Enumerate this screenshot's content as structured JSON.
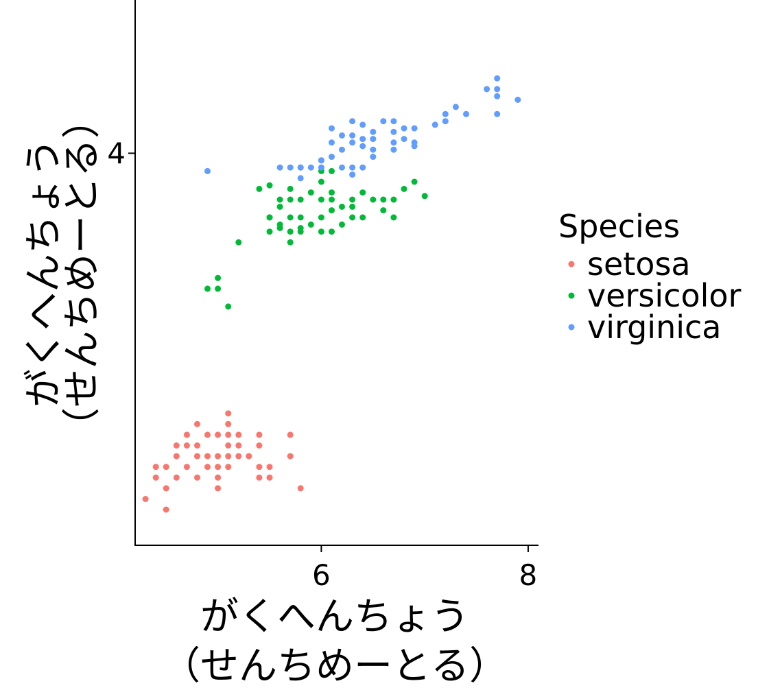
{
  "chart_data": {
    "type": "scatter",
    "xlabel_lines": [
      "がくへんちょう",
      "（せんちめーとる）"
    ],
    "ylabel_lines": [
      "がくへんちょう",
      "（せんちめーとる）"
    ],
    "xlim": [
      4.2,
      8.1
    ],
    "ylim": [
      2.9,
      4.43
    ],
    "x_ticks": [
      {
        "value": 6,
        "label": "6"
      },
      {
        "value": 8,
        "label": "8"
      }
    ],
    "y_ticks": [
      {
        "value": 4,
        "label": "4"
      }
    ],
    "grid": false,
    "legend_position": "right",
    "legend_title": "Species",
    "series": [
      {
        "name": "setosa",
        "color": "#F8766D",
        "points": [
          [
            4.3,
            3.03
          ],
          [
            4.4,
            3.09
          ],
          [
            4.4,
            3.12
          ],
          [
            4.5,
            3.06
          ],
          [
            4.5,
            3.12
          ],
          [
            4.6,
            3.09
          ],
          [
            4.6,
            3.15
          ],
          [
            4.6,
            3.18
          ],
          [
            4.7,
            3.12
          ],
          [
            4.7,
            3.18
          ],
          [
            4.7,
            3.21
          ],
          [
            4.8,
            3.09
          ],
          [
            4.8,
            3.15
          ],
          [
            4.8,
            3.18
          ],
          [
            4.8,
            3.24
          ],
          [
            4.9,
            3.12
          ],
          [
            4.9,
            3.15
          ],
          [
            4.9,
            3.21
          ],
          [
            5.0,
            3.09
          ],
          [
            5.0,
            3.12
          ],
          [
            5.0,
            3.15
          ],
          [
            5.0,
            3.21
          ],
          [
            5.1,
            3.12
          ],
          [
            5.1,
            3.15
          ],
          [
            5.1,
            3.18
          ],
          [
            5.1,
            3.21
          ],
          [
            5.1,
            3.24
          ],
          [
            5.1,
            3.27
          ],
          [
            5.2,
            3.15
          ],
          [
            5.2,
            3.18
          ],
          [
            5.2,
            3.21
          ],
          [
            5.3,
            3.15
          ],
          [
            5.4,
            3.12
          ],
          [
            5.4,
            3.18
          ],
          [
            5.4,
            3.21
          ],
          [
            5.5,
            3.09
          ],
          [
            5.5,
            3.12
          ],
          [
            5.7,
            3.15
          ],
          [
            5.7,
            3.21
          ],
          [
            5.8,
            3.06
          ],
          [
            4.5,
            3.0
          ],
          [
            5.0,
            3.06
          ],
          [
            5.4,
            3.09
          ]
        ]
      },
      {
        "name": "versicolor",
        "color": "#00BA38",
        "points": [
          [
            4.9,
            3.62
          ],
          [
            5.0,
            3.62
          ],
          [
            5.0,
            3.65
          ],
          [
            5.1,
            3.57
          ],
          [
            5.2,
            3.75
          ],
          [
            5.4,
            3.9
          ],
          [
            5.5,
            3.82
          ],
          [
            5.5,
            3.82
          ],
          [
            5.5,
            3.91
          ],
          [
            5.6,
            3.8
          ],
          [
            5.6,
            3.85
          ],
          [
            5.6,
            3.87
          ],
          [
            5.7,
            3.75
          ],
          [
            5.7,
            3.82
          ],
          [
            5.7,
            3.87
          ],
          [
            5.7,
            3.9
          ],
          [
            5.8,
            3.78
          ],
          [
            5.8,
            3.82
          ],
          [
            5.8,
            3.87
          ],
          [
            5.9,
            3.8
          ],
          [
            5.9,
            3.89
          ],
          [
            6.0,
            3.82
          ],
          [
            6.0,
            3.87
          ],
          [
            6.0,
            3.92
          ],
          [
            6.0,
            3.95
          ],
          [
            6.1,
            3.78
          ],
          [
            6.1,
            3.84
          ],
          [
            6.1,
            3.87
          ],
          [
            6.1,
            3.89
          ],
          [
            6.2,
            3.8
          ],
          [
            6.2,
            3.85
          ],
          [
            6.3,
            3.82
          ],
          [
            6.3,
            3.85
          ],
          [
            6.3,
            3.87
          ],
          [
            6.4,
            3.82
          ],
          [
            6.4,
            3.89
          ],
          [
            6.5,
            3.87
          ],
          [
            6.6,
            3.84
          ],
          [
            6.6,
            3.87
          ],
          [
            6.7,
            3.82
          ],
          [
            6.7,
            3.87
          ],
          [
            6.8,
            3.9
          ],
          [
            6.9,
            3.92
          ],
          [
            7.0,
            3.88
          ],
          [
            5.5,
            3.78
          ],
          [
            5.6,
            3.79
          ],
          [
            5.7,
            3.78
          ],
          [
            5.8,
            3.79
          ],
          [
            6.0,
            3.78
          ],
          [
            6.1,
            3.95
          ]
        ]
      },
      {
        "name": "virginica",
        "color": "#619CFF",
        "points": [
          [
            4.9,
            3.95
          ],
          [
            5.6,
            3.96
          ],
          [
            5.7,
            3.96
          ],
          [
            5.8,
            3.96
          ],
          [
            5.8,
            3.96
          ],
          [
            5.9,
            3.96
          ],
          [
            6.0,
            3.98
          ],
          [
            6.1,
            3.99
          ],
          [
            6.1,
            4.03
          ],
          [
            6.2,
            4.01
          ],
          [
            6.3,
            4.03
          ],
          [
            6.3,
            4.05
          ],
          [
            6.3,
            4.09
          ],
          [
            6.4,
            4.02
          ],
          [
            6.4,
            4.04
          ],
          [
            6.4,
            4.08
          ],
          [
            6.5,
            4.01
          ],
          [
            6.5,
            4.04
          ],
          [
            6.5,
            4.06
          ],
          [
            6.7,
            4.01
          ],
          [
            6.7,
            4.03
          ],
          [
            6.7,
            4.06
          ],
          [
            6.7,
            4.09
          ],
          [
            6.8,
            4.04
          ],
          [
            6.8,
            4.07
          ],
          [
            6.9,
            4.03
          ],
          [
            6.9,
            4.07
          ],
          [
            7.1,
            4.08
          ],
          [
            7.2,
            4.09
          ],
          [
            7.2,
            4.11
          ],
          [
            7.3,
            4.13
          ],
          [
            7.4,
            4.11
          ],
          [
            7.6,
            4.18
          ],
          [
            7.7,
            4.16
          ],
          [
            7.7,
            4.18
          ],
          [
            7.7,
            4.21
          ],
          [
            7.7,
            4.11
          ],
          [
            7.9,
            4.15
          ],
          [
            6.1,
            4.07
          ],
          [
            6.2,
            4.05
          ],
          [
            6.0,
            3.96
          ],
          [
            6.3,
            3.94
          ],
          [
            6.4,
            3.96
          ],
          [
            6.6,
            4.09
          ],
          [
            6.9,
            4.02
          ],
          [
            6.2,
            3.96
          ],
          [
            6.0,
            3.98
          ],
          [
            6.5,
            3.99
          ],
          [
            6.3,
            3.96
          ],
          [
            5.8,
            3.93
          ]
        ]
      }
    ]
  }
}
